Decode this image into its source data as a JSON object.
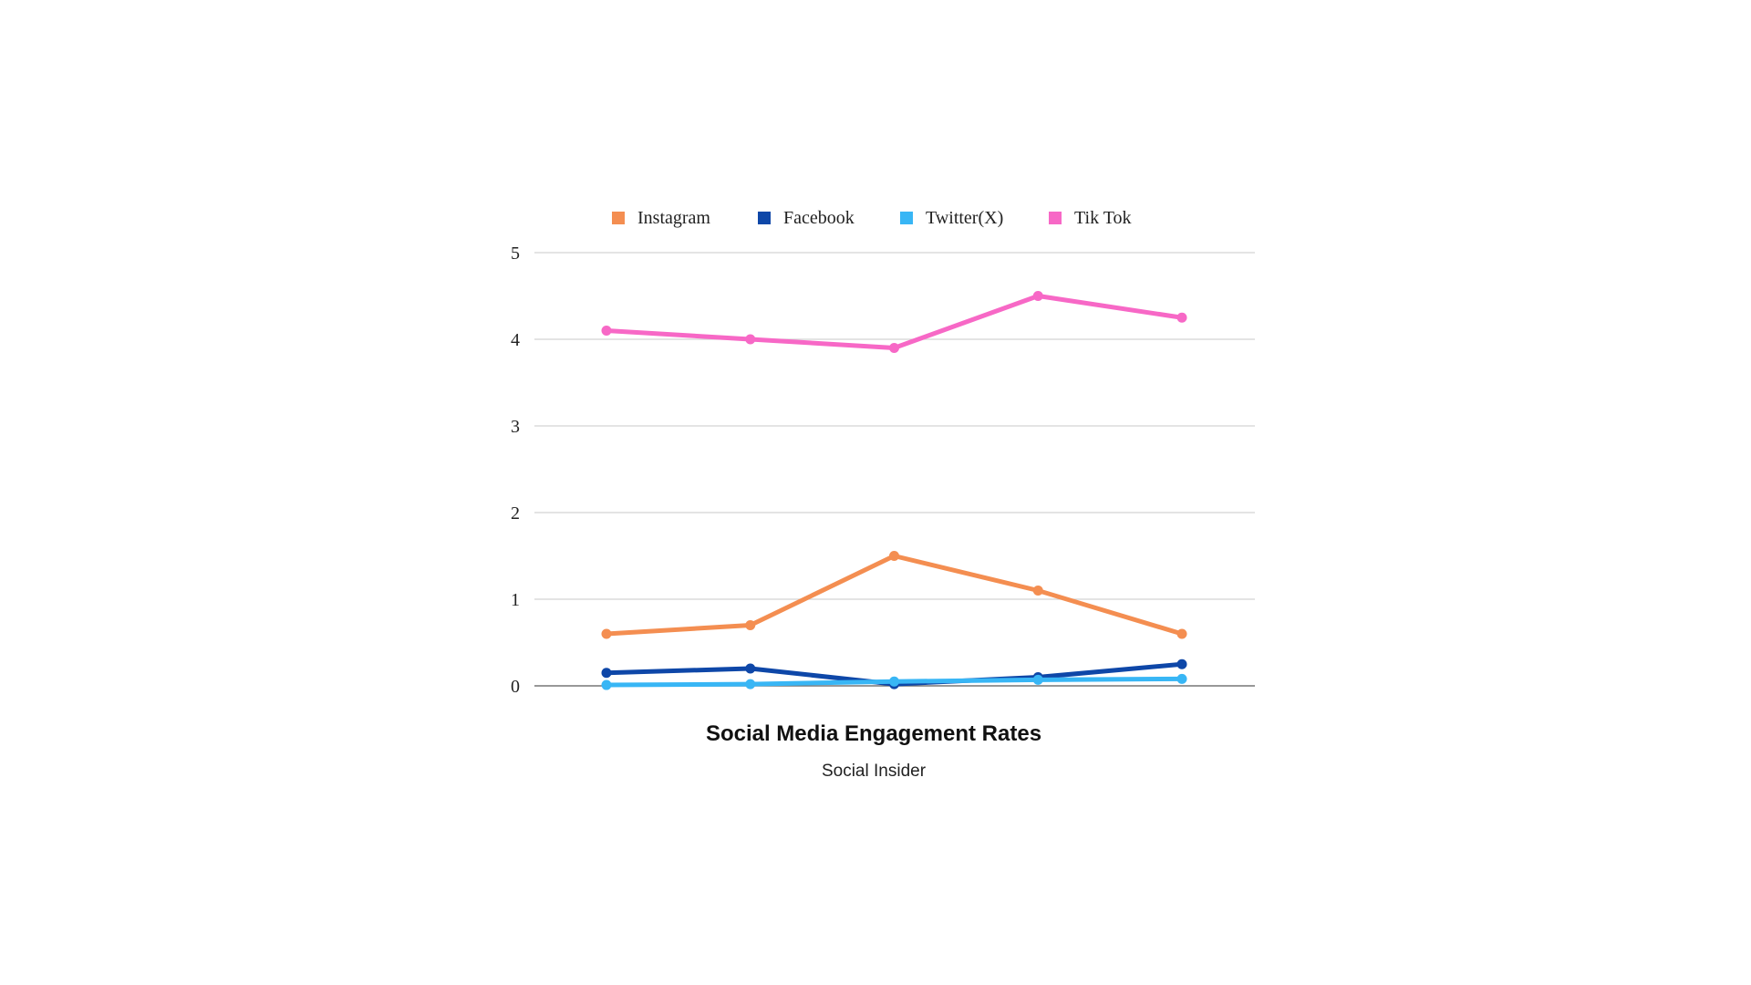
{
  "chart_data": {
    "type": "line",
    "title": "Social Media Engagement Rates",
    "subtitle": "Social Insider",
    "x": [
      1,
      2,
      3,
      4,
      5
    ],
    "ylim": [
      0,
      5
    ],
    "yticks": [
      0,
      1,
      2,
      3,
      4,
      5
    ],
    "grid": true,
    "legend": "top",
    "series": [
      {
        "name": "Instagram",
        "color": "#F48E51",
        "values": [
          0.6,
          0.7,
          1.5,
          1.1,
          0.6
        ]
      },
      {
        "name": "Facebook",
        "color": "#0E47A8",
        "values": [
          0.15,
          0.2,
          0.02,
          0.1,
          0.25
        ]
      },
      {
        "name": "Twitter(X)",
        "color": "#38B6F5",
        "values": [
          0.01,
          0.02,
          0.05,
          0.07,
          0.08
        ]
      },
      {
        "name": "Tik Tok",
        "color": "#F768C6",
        "values": [
          4.1,
          4.0,
          3.9,
          4.5,
          4.25
        ]
      }
    ]
  }
}
